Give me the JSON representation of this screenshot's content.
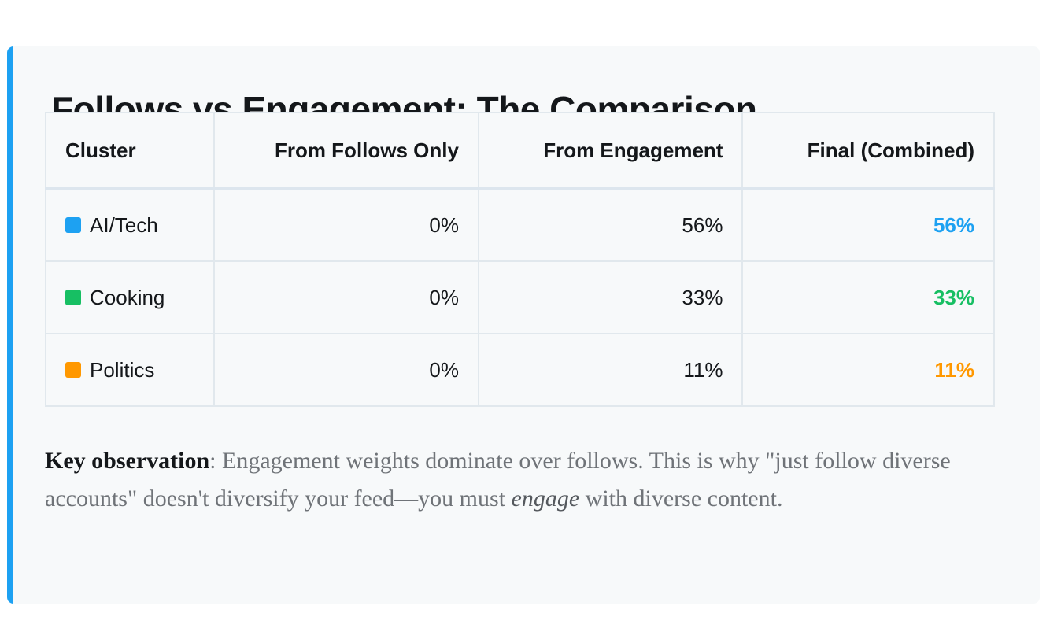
{
  "title": "Follows vs Engagement: The Comparison",
  "table": {
    "headers": {
      "cluster": "Cluster",
      "follows": "From Follows Only",
      "engagement": "From Engagement",
      "final": "Final (Combined)"
    },
    "rows": [
      {
        "cluster": "AI/Tech",
        "follows": "0%",
        "engagement": "56%",
        "final": "56%",
        "color": "#1da1f2"
      },
      {
        "cluster": "Cooking",
        "follows": "0%",
        "engagement": "33%",
        "final": "33%",
        "color": "#17bf63"
      },
      {
        "cluster": "Politics",
        "follows": "0%",
        "engagement": "11%",
        "final": "11%",
        "color": "#ff9800"
      }
    ]
  },
  "note": {
    "key_label": "Key observation",
    "text_before": ": Engagement weights dominate over follows. This is why \"just follow diverse accounts\" doesn't diversify your feed—you must ",
    "emphasis": "engage",
    "text_after": " with diverse content."
  },
  "colors": {
    "accent_border": "#1da1f2",
    "card_background": "#f7f9fa"
  }
}
